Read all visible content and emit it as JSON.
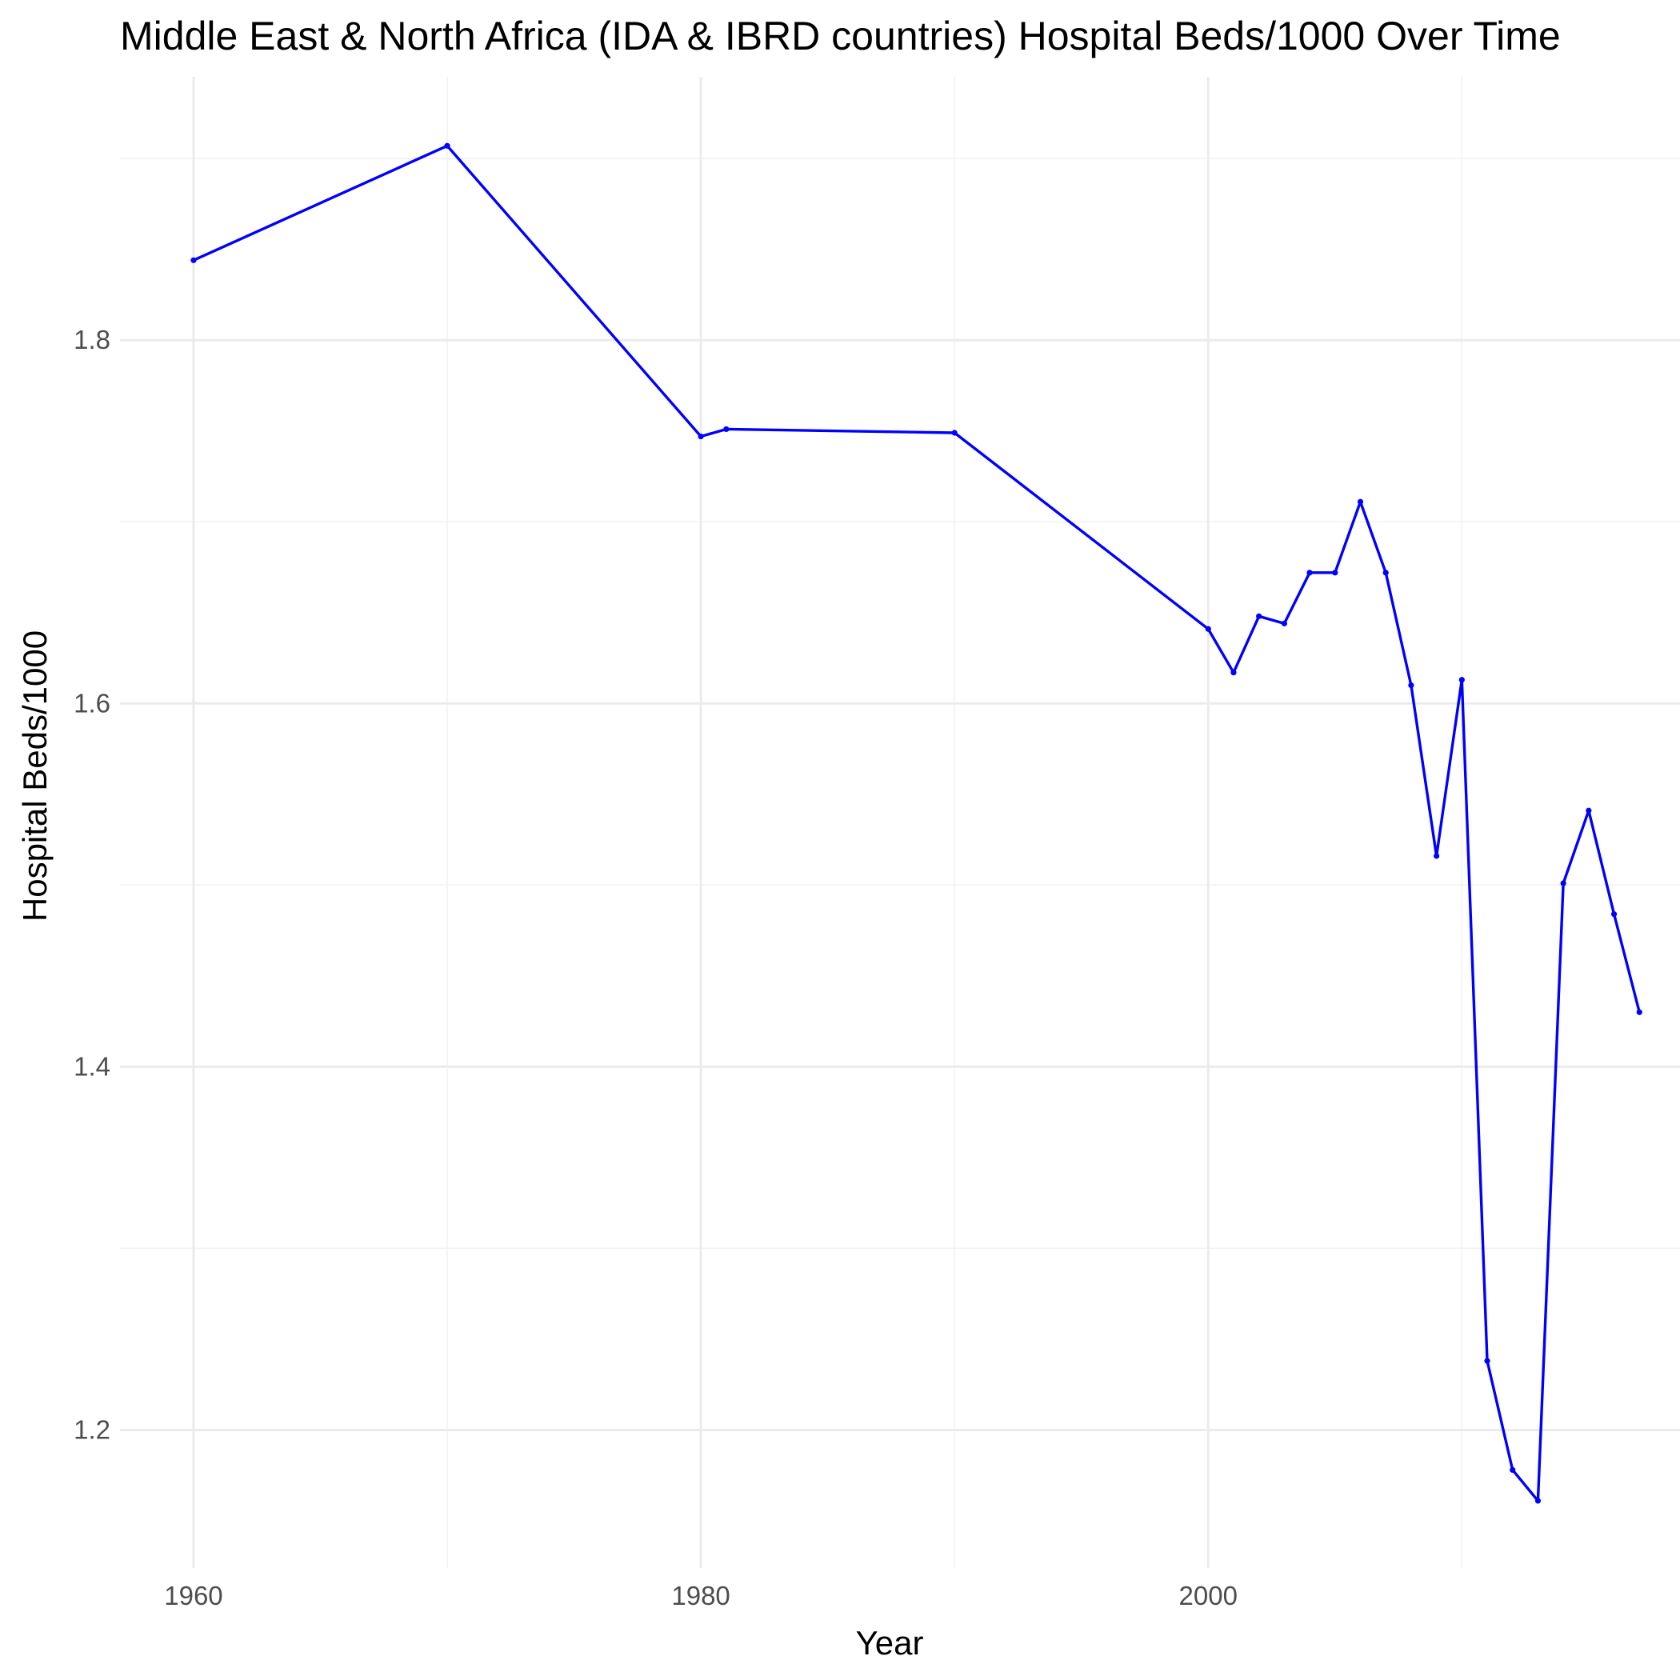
{
  "chart_data": {
    "type": "line",
    "title": "Middle East & North Africa (IDA & IBRD countries) Hospital Beds/1000 Over Time",
    "xlabel": "Year",
    "ylabel": "Hospital Beds/1000",
    "xlim": [
      1957.1,
      2018.6
    ],
    "ylim": [
      1.124,
      1.945
    ],
    "x_ticks": [
      1960,
      1980,
      2000
    ],
    "x_tick_labels": [
      "1960",
      "1980",
      "2000"
    ],
    "x_minor_ticks": [
      1970,
      1990,
      2010
    ],
    "y_ticks": [
      1.2,
      1.4,
      1.6,
      1.8
    ],
    "y_tick_labels": [
      "1.2",
      "1.4",
      "1.6",
      "1.8"
    ],
    "y_minor_ticks": [
      1.3,
      1.5,
      1.7,
      1.9
    ],
    "grid": true,
    "line_color": "#0000FF",
    "series": [
      {
        "x": [
          1960,
          1970,
          1980,
          1981,
          1990,
          2000,
          2001,
          2002,
          2003,
          2004,
          2005,
          2006,
          2007,
          2008,
          2009,
          2010,
          2011,
          2012,
          2013,
          2014,
          2015,
          2016,
          2017
        ],
        "y": [
          1.844,
          1.907,
          1.747,
          1.751,
          1.749,
          1.641,
          1.617,
          1.648,
          1.644,
          1.672,
          1.672,
          1.711,
          1.672,
          1.61,
          1.516,
          1.613,
          1.238,
          1.178,
          1.161,
          1.501,
          1.541,
          1.484,
          1.43
        ]
      }
    ]
  }
}
